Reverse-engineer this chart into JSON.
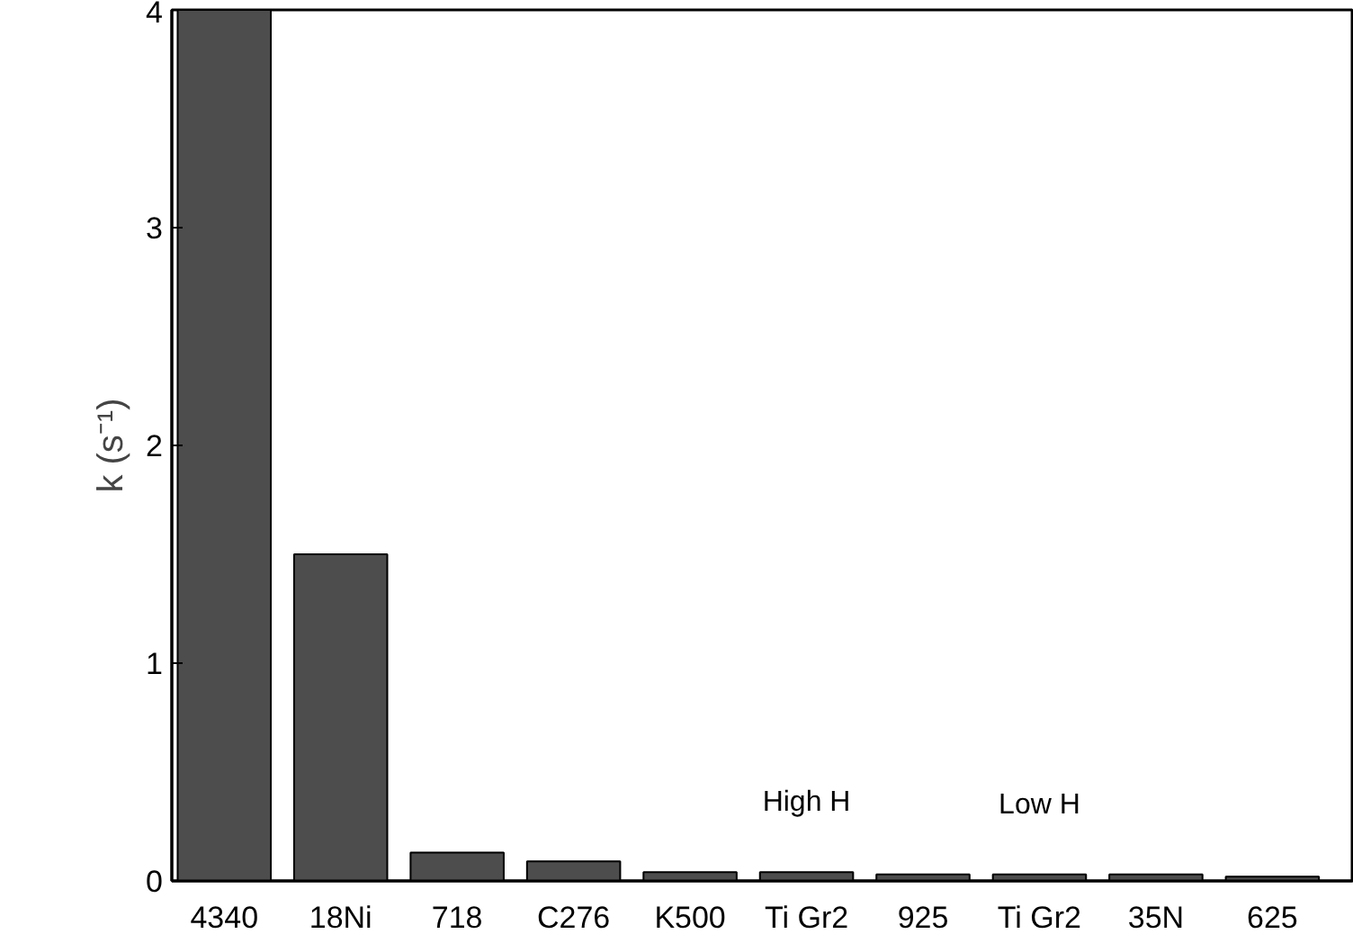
{
  "chart_data": {
    "type": "bar",
    "ylabel": "k (s⁻¹)",
    "categories": [
      "4340",
      "18Ni",
      "718",
      "C276",
      "K500",
      "Ti Gr2",
      "925",
      "Ti Gr2",
      "35N",
      "625"
    ],
    "values": [
      4.0,
      1.5,
      0.13,
      0.09,
      0.04,
      0.04,
      0.03,
      0.03,
      0.03,
      0.02
    ],
    "color": "#4d4d4d",
    "ylim": [
      0,
      4
    ],
    "yticks": [
      0,
      1,
      2,
      3,
      4
    ],
    "grid": false,
    "annotations": [
      "High H",
      "Low H"
    ]
  }
}
